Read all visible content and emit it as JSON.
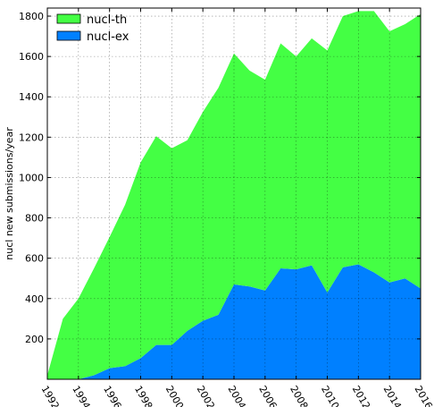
{
  "chart_data": {
    "type": "area",
    "stacked": true,
    "x": [
      1992,
      1993,
      1994,
      1995,
      1996,
      1997,
      1998,
      1999,
      2000,
      2001,
      2002,
      2003,
      2004,
      2005,
      2006,
      2007,
      2008,
      2009,
      2010,
      2011,
      2012,
      2013,
      2014,
      2015,
      2016
    ],
    "series": [
      {
        "name": "nucl-ex",
        "color": "#0080ff",
        "values": [
          0,
          0,
          0,
          20,
          55,
          65,
          105,
          170,
          170,
          240,
          290,
          320,
          470,
          460,
          440,
          550,
          545,
          565,
          430,
          555,
          570,
          530,
          480,
          500,
          450
        ]
      },
      {
        "name": "nucl-th",
        "color": "#44ff44",
        "values": [
          20,
          300,
          400,
          530,
          650,
          800,
          970,
          1035,
          975,
          945,
          1035,
          1125,
          1145,
          1070,
          1045,
          1115,
          1055,
          1125,
          1200,
          1245,
          1255,
          1295,
          1245,
          1260,
          1360
        ]
      }
    ],
    "xlabel": "",
    "ylabel": "nucl new submissions/year",
    "xlim": [
      1992,
      2016
    ],
    "ylim": [
      0,
      1840
    ],
    "xticks": [
      1992,
      1994,
      1996,
      1998,
      2000,
      2002,
      2004,
      2006,
      2008,
      2010,
      2012,
      2014,
      2016
    ],
    "yticks": [
      200,
      400,
      600,
      800,
      1000,
      1200,
      1400,
      1600,
      1800
    ],
    "grid": true,
    "legend_position": "top-left"
  }
}
